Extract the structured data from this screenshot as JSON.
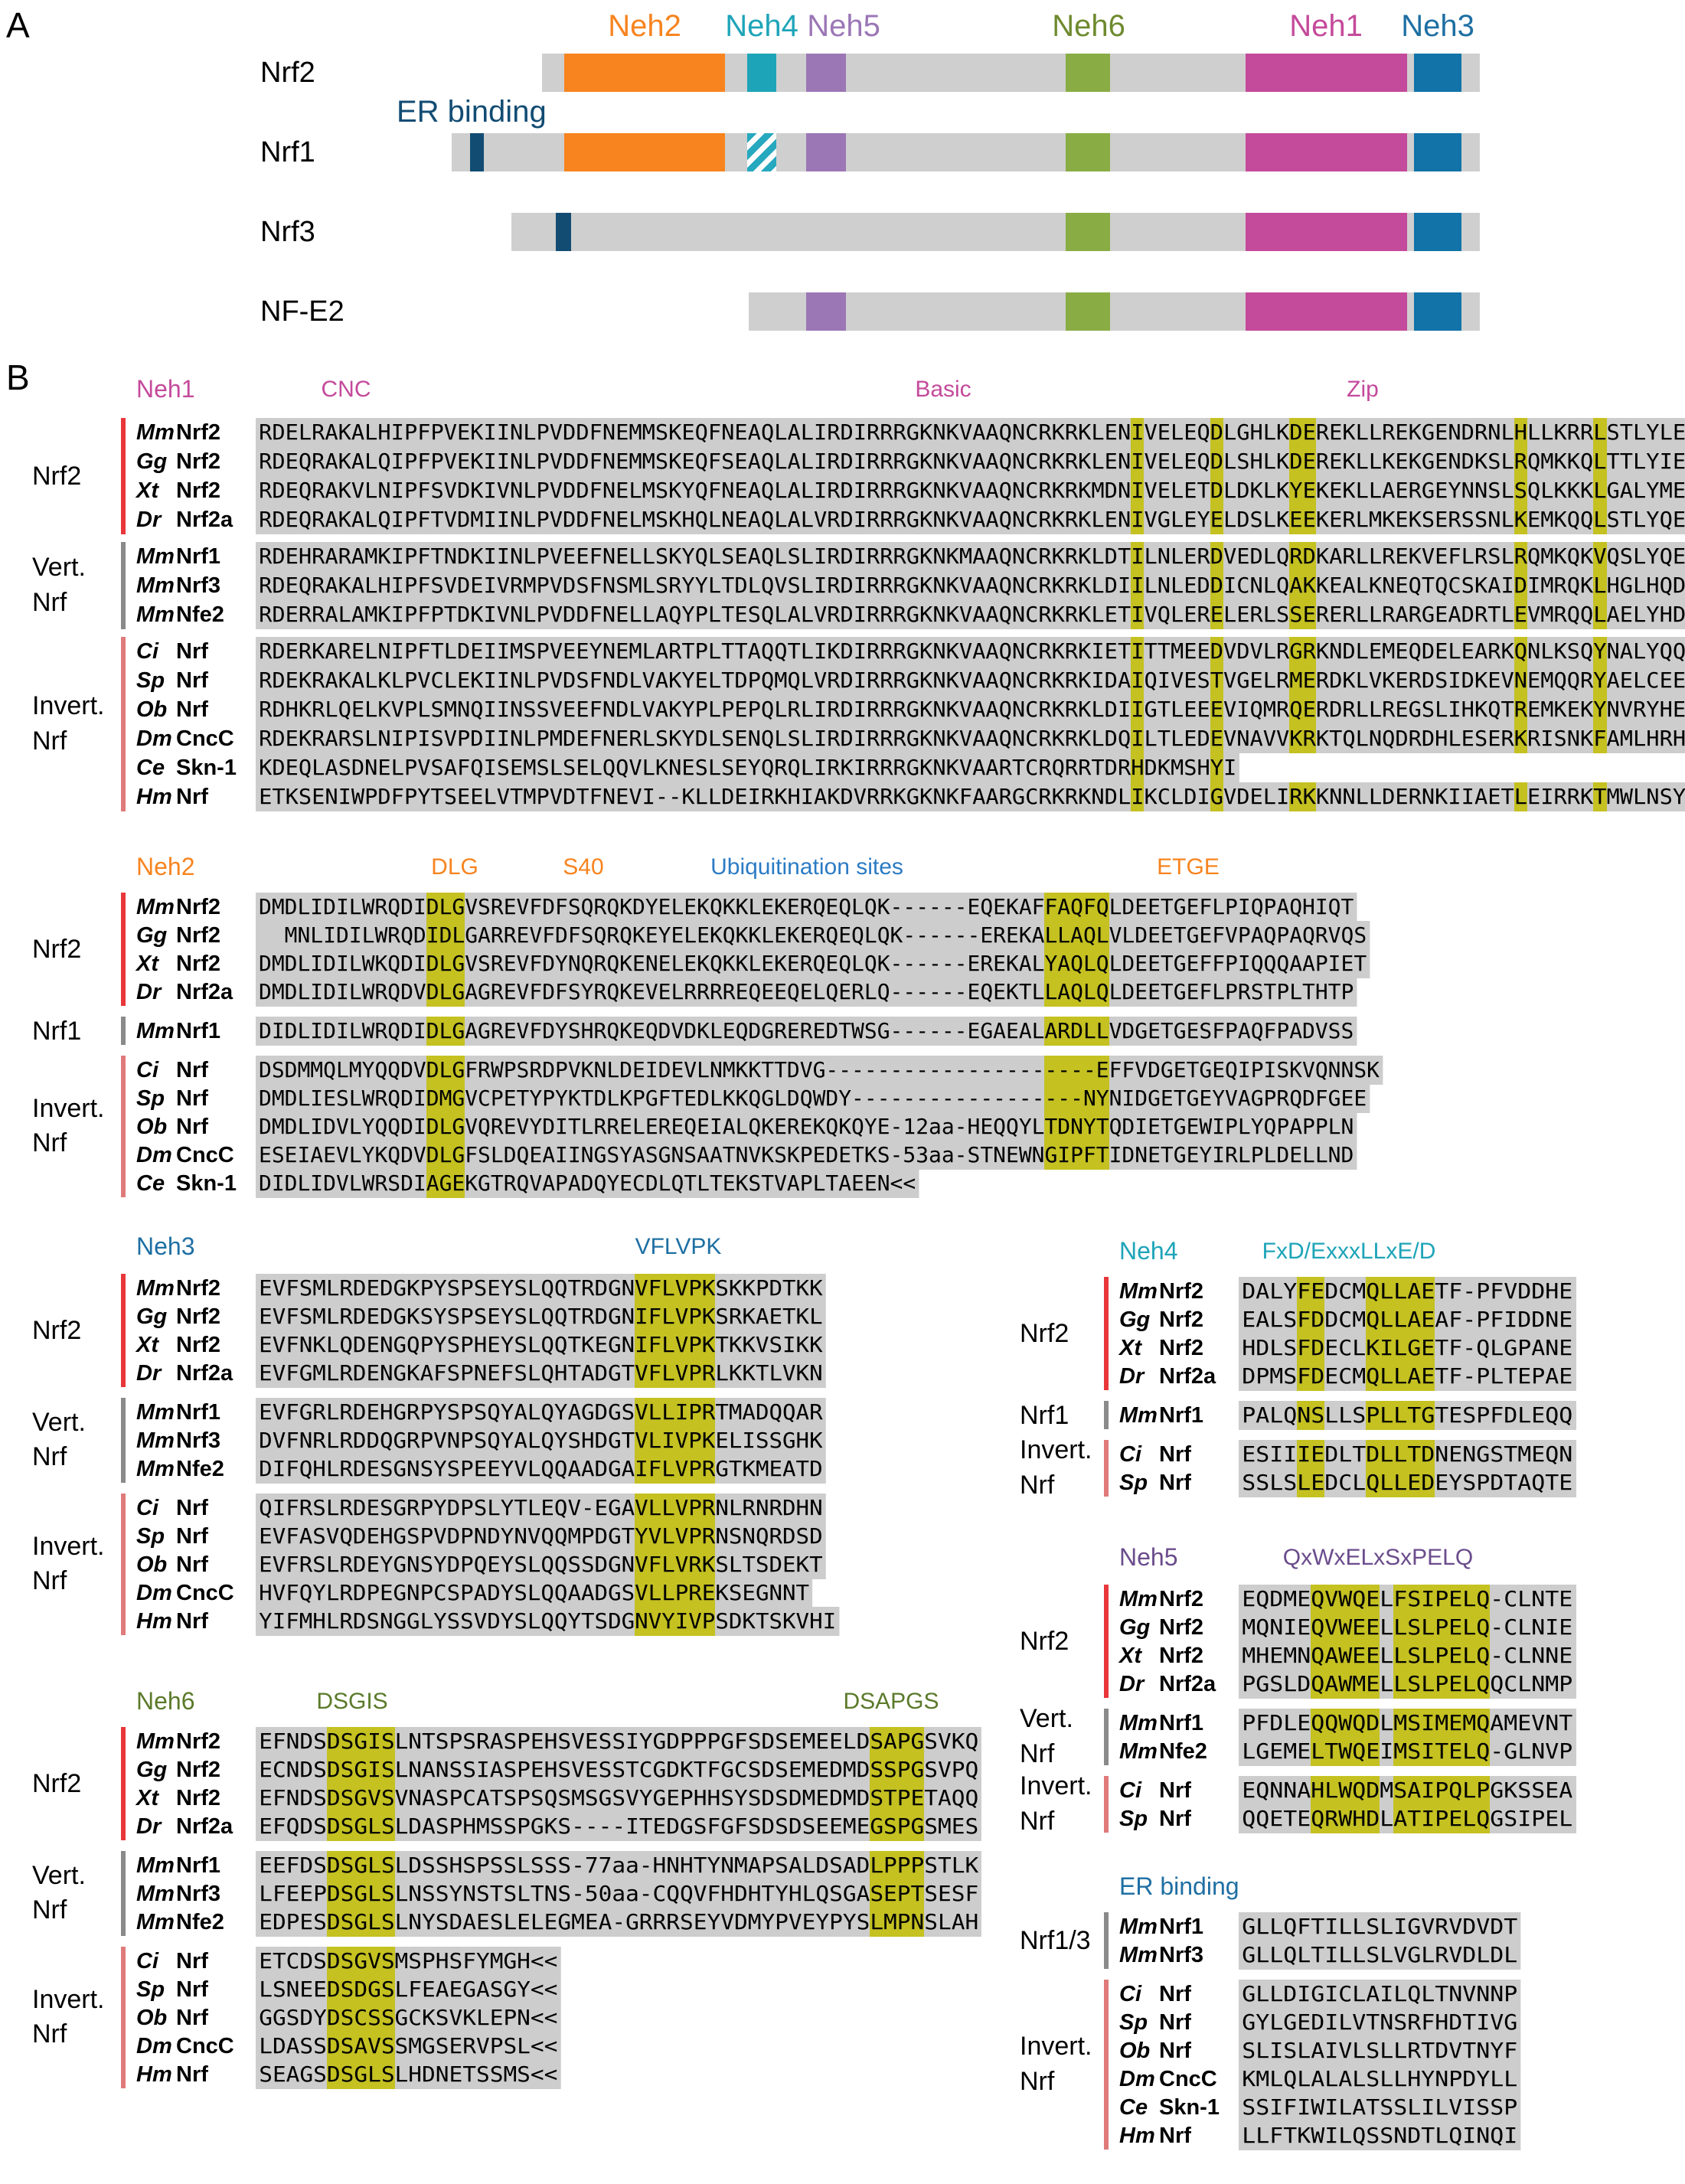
{
  "panel_a": {
    "letter": "A",
    "domain_labels": [
      {
        "text": "Neh2",
        "color": "#f7841f"
      },
      {
        "text": "Neh4",
        "color": "#1ea4b8"
      },
      {
        "text": "Neh5",
        "color": "#9b77b6"
      },
      {
        "text": "Neh6",
        "color": "#6e8a2e"
      },
      {
        "text": "Neh1",
        "color": "#c44a9b"
      },
      {
        "text": "Neh3",
        "color": "#1e6fa3"
      }
    ],
    "er_label": "ER binding",
    "proteins": [
      "Nrf2",
      "Nrf1",
      "Nrf3",
      "NF-E2"
    ],
    "colors": {
      "bar": "#cfcfcf",
      "neh2": "#f7841f",
      "neh4": "#1ea4b8",
      "neh5": "#9b77b6",
      "neh6": "#89ad44",
      "neh1": "#c44a9b",
      "neh3": "#1173a8",
      "er": "#124c73"
    }
  },
  "panel_b": {
    "letter": "B",
    "colors": {
      "nrf2_line": "#e8363a",
      "vert_line": "#8a8a8a",
      "invert_line": "#e07a7a",
      "highlight": "#f4f029",
      "neh1": "#c44a9b",
      "neh2": "#f7841f",
      "neh3": "#1e6fa3",
      "neh4": "#1ea4b8",
      "neh5": "#6b4c8c",
      "neh6": "#5b7a2a",
      "ubi": "#2b7bc4"
    },
    "neh1": {
      "title": "Neh1",
      "motifs": [
        "CNC",
        "Basic",
        "Zip"
      ],
      "groups": [
        {
          "label": "Nrf2",
          "rows": [
            {
              "sp": "Mm",
              "name": "Nrf2",
              "seq": "RDELRAKALHIPFPVEKIINLPVDDFNEMMSKEQFNEAQLALIRDIRRRGKNKVAAQNCRKRKLENIVELEQDLGHLKDEREKLLREKGENDRNLHLLKRRLSTLYLE"
            },
            {
              "sp": "Gg",
              "name": "Nrf2",
              "seq": "RDEQRAKALQIPFPVEKIINLPVDDFNEMMSKEQFSEAQLALIRDIRRRGKNKVAAQNCRKRKLENIVELEQDLSHLKDEREKLLKEKGENDKSLRQMKKQLTTLYIE"
            },
            {
              "sp": "Xt",
              "name": "Nrf2",
              "seq": "RDEQRAKVLNIPFSVDKIVNLPVDDFNELMSKYQFNEAQLALIRDIRRRGKNKVAAQNCRKRKMDNIVELETDLDKLKYEKEKLLAERGEYNNSLSQLKKKLGALYME"
            },
            {
              "sp": "Dr",
              "name": "Nrf2a",
              "seq": "RDEQRAKALQIPFTVDMIINLPVDDFNELMSKHQLNEAQLALVRDIRRRGKNKVAAQNCRKRKLENIVGLEYELDSLKEEKERLMKEKSERSSNLKEMKQQLSTLYQE"
            }
          ]
        },
        {
          "label": "Vert.\nNrf",
          "rows": [
            {
              "sp": "Mm",
              "name": "Nrf1",
              "seq": "RDEHRARAMKIPFTNDKIINLPVEEFNELLSKYQLSEAQLSLIRDIRRRGKNKMAAQNCRKRKLDTILNLERDVEDLQRDKARLLREKVEFLRSLRQMKQKVQSLYQE"
            },
            {
              "sp": "Mm",
              "name": "Nrf3",
              "seq": "RDEQRAKALHIPFSVDEIVRMPVDSFNSMLSRYYLTDLQVSLIRDIRRRGKNKVAAQNCRKRKLDIILNLEDDICNLQAKKEALKNEQTQCSKAIDIMRQKLHGLHQD"
            },
            {
              "sp": "Mm",
              "name": "Nfe2",
              "seq": "RDERRALAMKIPFPTDKIVNLPVDDFNELLAQYPLTESQLALVRDIRRRGKNKVAAQNCRKRKLETIVQLERELERLSSERERLLRARGEADRTLEVMRQQLAELYHD"
            }
          ]
        },
        {
          "label": "Invert.\nNrf",
          "rows": [
            {
              "sp": "Ci",
              "name": "Nrf",
              "seq": "RDERKARELNIPFTLDEIIMSPVEEYNEMLARTPLTTAQQTLIKDIRRRGKNKVAAQNCRKRKIETITTMEEDVDVLRGRKNDLEMEQDELEARKQNLKSQYNALYQQ"
            },
            {
              "sp": "Sp",
              "name": "Nrf",
              "seq": "RDEKRAKALKLPVCLEKIINLPVDSFNDLVAKYELTDPQMQLVRDIRRRGKNKVAAQNCRKRKIDAIQIVESTVGELRMERDKLVKERDSIDKEVNEMQQRYAELCEE"
            },
            {
              "sp": "Ob",
              "name": "Nrf",
              "seq": "RDHKRLQELKVPLSMNQIINSSVEEFNDLVAKYPLPEPQLRLIRDIRRRGKNKVAAQNCRKRKLDIIGTLEEEVIQMRQERDRLLREGSLIHKQTREMKEKYNVRYHE"
            },
            {
              "sp": "Dm",
              "name": "CncC",
              "seq": "RDEKRARSLNIPISVPDIINLPMDEFNERLSKYDLSENQLSLIRDIRRRGKNKVAAQNCRKRKLDQILTLEDEVNAVVKRKTQLNQDRDHLESERKRISNKFAMLHRH"
            },
            {
              "sp": "Ce",
              "name": "Skn-1",
              "seq": "KDEQLASDNELPVSAFQISEMSLSELQQVLKNESLSEYQRQLIRKIRRRGKNKVAARTCRQRRTDRHDKMSHYI"
            },
            {
              "sp": "Hm",
              "name": "Nrf",
              "seq": "ETKSENIWPDFPYTSEELVTMPVDTFNEVI--KLLDEIRKHIAKDVRRKGKNKFAARGCRKRKNDLIKCLDIGVDELIRKKNNLLDERNKIIAETLEIRRKTMWLNSY"
            }
          ]
        }
      ]
    },
    "neh2": {
      "title": "Neh2",
      "motifs": [
        "DLG",
        "S40",
        "Ubiquitination sites",
        "ETGE"
      ],
      "groups": [
        {
          "label": "Nrf2",
          "rows": [
            {
              "sp": "Mm",
              "name": "Nrf2",
              "seq": "DMDLIDILWRQDIDLGVSREVFDFSQRQKDYELEKQKKLEKERQEQLQK------EQEKAFFAQFQLDEETGEFLPIQPAQHIQT"
            },
            {
              "sp": "Gg",
              "name": "Nrf2",
              "seq": "  MNLIDILWRQDIDLGARREVFDFSQRQKEYELEKQKKLEKERQEQLQK------EREKALLAQLVLDEETGEFVPAQPAQRVQS"
            },
            {
              "sp": "Xt",
              "name": "Nrf2",
              "seq": "DMDLIDILWKQDIDLGVSREVFDYNQRQKENELEKQKKLEKERQEQLQK------EREKALYAQLQLDEETGEFFPIQQQAAPIET"
            },
            {
              "sp": "Dr",
              "name": "Nrf2a",
              "seq": "DMDLIDILWRQDVDLGAGREVFDFSYRQKEVELRRRREQEEQELQERLQ------EQEKTLLAQLQLDEETGEFLPRSTPLTHTP"
            }
          ]
        },
        {
          "label": "Nrf1",
          "rows": [
            {
              "sp": "Mm",
              "name": "Nrf1",
              "seq": "DIDLIDILWRQDIDLGAGREVFDYSHRQKEQDVDKLEQDGREREDTWSG------EGAEALARDLLVDGETGESFPAQFPADVSS"
            }
          ]
        },
        {
          "label": "Invert.\nNrf",
          "rows": [
            {
              "sp": "Ci",
              "name": "Nrf",
              "seq": "DSDMMQLMYQQDVDLGFRWPSRDPVKNLDEIDEVLNMKKTTDVG---------------------EFFVDGETGEQIPISKVQNNSK"
            },
            {
              "sp": "Sp",
              "name": "Nrf",
              "seq": "DMDLIESLWRQDIDMGVCPETYPYKTDLKPGFTEDLKKQGLDQWDY------------------NYNIDGETGEYVAGPRQDFGEE"
            },
            {
              "sp": "Ob",
              "name": "Nrf",
              "seq": "DMDLIDVLYQQDIDLGVQREVYDITLRRELEREQEIALQKEREKQKQYE-12aa-HEQQYLTDNYTQDIETGEWIPLYQPAPPLN"
            },
            {
              "sp": "Dm",
              "name": "CncC",
              "seq": "ESEIAEVLYKQDVDLGFSLDQEAIINGSYASGNSAATNVKSKPEDETKS-53aa-STNEWNGIPFTIDNETGEYIRLPLDELLND"
            },
            {
              "sp": "Ce",
              "name": "Skn-1",
              "seq": "DIDLIDVLWRSDIAGEKGTRQVAPADQYECDLQTLTEKSTVAPLTAEEN<<"
            }
          ]
        }
      ]
    },
    "neh3": {
      "title": "Neh3",
      "motifs": [
        "VFLVPK"
      ],
      "groups": [
        {
          "label": "Nrf2",
          "rows": [
            {
              "sp": "Mm",
              "name": "Nrf2",
              "seq": "EVFSMLRDEDGKPYSPSEYSLQQTRDGNVFLVPKSKKPDTKK"
            },
            {
              "sp": "Gg",
              "name": "Nrf2",
              "seq": "EVFSMLRDEDGKSYSPSEYSLQQTRDGNIFLVPKSRKAETKL"
            },
            {
              "sp": "Xt",
              "name": "Nrf2",
              "seq": "EVFNKLQDENGQPYSPHEYSLQQTKEGNIFLVPKTKKVSIKK"
            },
            {
              "sp": "Dr",
              "name": "Nrf2a",
              "seq": "EVFGMLRDENGKAFSPNEFSLQHTADGTVFLVPRLKKTLVKN"
            }
          ]
        },
        {
          "label": "Vert.\nNrf",
          "rows": [
            {
              "sp": "Mm",
              "name": "Nrf1",
              "seq": "EVFGRLRDEHGRPYSPSQYALQYAGDGSVLLIPRTMADQQAR"
            },
            {
              "sp": "Mm",
              "name": "Nrf3",
              "seq": "DVFNRLRDDQGRPVNPSQYALQYSHDGTVLIVPKELISSGHK"
            },
            {
              "sp": "Mm",
              "name": "Nfe2",
              "seq": "DIFQHLRDESGNSYSPEEYVLQQAADGAIFLVPRGTKMEATD"
            }
          ]
        },
        {
          "label": "Invert.\nNrf",
          "rows": [
            {
              "sp": "Ci",
              "name": "Nrf",
              "seq": "QIFRSLRDESGRPYDPSLYTLEQV-EGAVLLVPRNLRNRDHN"
            },
            {
              "sp": "Sp",
              "name": "Nrf",
              "seq": "EVFASVQDEHGSPVDPNDYNVQQMPDGTYVLVPRNSNQRDSD"
            },
            {
              "sp": "Ob",
              "name": "Nrf",
              "seq": "EVFRSLRDEYGNSYDPQEYSLQQSSDGNVFLVRKSLTSDEKT"
            },
            {
              "sp": "Dm",
              "name": "CncC",
              "seq": "HVFQYLRDPEGNPCSPADYSLQQAADGSVLLPREKSEGNNT"
            },
            {
              "sp": "Hm",
              "name": "Nrf",
              "seq": "YIFMHLRDSNGGLYSSVDYSLQQYTSDGNVYIVPSDKTSKVHI"
            }
          ]
        }
      ]
    },
    "neh4": {
      "title": "Neh4",
      "motifs": [
        "FxD/ExxxLLxE/D"
      ],
      "groups": [
        {
          "label": "Nrf2",
          "rows": [
            {
              "sp": "Mm",
              "name": "Nrf2",
              "seq": "DALYFEDCMQLLAETF-PFVDDHE"
            },
            {
              "sp": "Gg",
              "name": "Nrf2",
              "seq": "EALSFDDCMQLLAEAF-PFIDDNE"
            },
            {
              "sp": "Xt",
              "name": "Nrf2",
              "seq": "HDLSFDECLKILGETF-QLGPANE"
            },
            {
              "sp": "Dr",
              "name": "Nrf2a",
              "seq": "DPMSFDECMQLLAETF-PLTEPAE"
            }
          ]
        },
        {
          "label": "Nrf1",
          "rows": [
            {
              "sp": "Mm",
              "name": "Nrf1",
              "seq": "PALQNSLLSPLLTGTESPFDLEQQ"
            }
          ]
        },
        {
          "label": "Invert.\nNrf",
          "rows": [
            {
              "sp": "Ci",
              "name": "Nrf",
              "seq": "ESIIIEDLTDLLTDNENGSTMEQN"
            },
            {
              "sp": "Sp",
              "name": "Nrf",
              "seq": "SSLSLEDCLQLLEDEYSPDTAQTE"
            }
          ]
        }
      ]
    },
    "neh5": {
      "title": "Neh5",
      "motifs": [
        "QxWxELxSxPELQ"
      ],
      "groups": [
        {
          "label": "Nrf2",
          "rows": [
            {
              "sp": "Mm",
              "name": "Nrf2",
              "seq": "EQDMEQVWQELFSIPELQ-CLNTE"
            },
            {
              "sp": "Gg",
              "name": "Nrf2",
              "seq": "MQNIEQVWEELLSLPELQ-CLNIE"
            },
            {
              "sp": "Xt",
              "name": "Nrf2",
              "seq": "MHEMNQAWEELLSLPELQ-CLNNE"
            },
            {
              "sp": "Dr",
              "name": "Nrf2a",
              "seq": "PGSLDQAWMELLSLPELQQCLNMP"
            }
          ]
        },
        {
          "label": "Vert.\nNrf",
          "rows": [
            {
              "sp": "Mm",
              "name": "Nrf1",
              "seq": "PFDLEQQWQDLMSIMEMQAMEVNT"
            },
            {
              "sp": "Mm",
              "name": "Nfe2",
              "seq": "LGEMELTWQEIMSITELQ-GLNVP"
            }
          ]
        },
        {
          "label": "Invert.\nNrf",
          "rows": [
            {
              "sp": "Ci",
              "name": "Nrf",
              "seq": "EQNNAHLWQDMSAIPQLPGKSSEA"
            },
            {
              "sp": "Sp",
              "name": "Nrf",
              "seq": "QQETEQRWHDLATIPELQGSIPEL"
            }
          ]
        }
      ]
    },
    "neh6": {
      "title": "Neh6",
      "motifs": [
        "DSGIS",
        "DSAPGS"
      ],
      "groups": [
        {
          "label": "Nrf2",
          "rows": [
            {
              "sp": "Mm",
              "name": "Nrf2",
              "seq": "EFNDSDSGISLNTSPSRASPEHSVESSIYGDPPPGFSDSEMEELDSAPGSVKQ"
            },
            {
              "sp": "Gg",
              "name": "Nrf2",
              "seq": "ECNDSDSGISLNANSSIASPEHSVESSTCGDKTFGCSDSEMEDMDSSPGSVPQ"
            },
            {
              "sp": "Xt",
              "name": "Nrf2",
              "seq": "EFNDSDSGVSVNASPCATSPSQSMSGSVYGEPHHSYSDSDMEDMDSTPETAQQ"
            },
            {
              "sp": "Dr",
              "name": "Nrf2a",
              "seq": "EFQDSDSGLSLDASPHMSSPGKS----ITEDGSFGFSDSDSEEMEGSPGSMES"
            }
          ]
        },
        {
          "label": "Vert.\nNrf",
          "rows": [
            {
              "sp": "Mm",
              "name": "Nrf1",
              "seq": "EEFDSDSGLSLDSSHSPSSLSSS-77aa-HNHTYNMAPSALDSADLPPPSTLK"
            },
            {
              "sp": "Mm",
              "name": "Nrf3",
              "seq": "LFEEPDSGLSLNSSYNSTSLTNS-50aa-CQQVFHDHTYHLQSGASEPTSESF"
            },
            {
              "sp": "Mm",
              "name": "Nfe2",
              "seq": "EDPESDSGLSLNYSDAESLELEGMEA-GRRRSEYVDMYPVEYPYSLMPNSLAH"
            }
          ]
        },
        {
          "label": "Invert.\nNrf",
          "rows": [
            {
              "sp": "Ci",
              "name": "Nrf",
              "seq": "ETCDSDSGVSMSPHSFYMGH<<"
            },
            {
              "sp": "Sp",
              "name": "Nrf",
              "seq": "LSNEEDSDGSLFEAEGASGY<<"
            },
            {
              "sp": "Ob",
              "name": "Nrf",
              "seq": "GGSDYDSCSSGCKSVKLEPN<<"
            },
            {
              "sp": "Dm",
              "name": "CncC",
              "seq": "LDASSDSAVSSMGSERVPSL<<"
            },
            {
              "sp": "Hm",
              "name": "Nrf",
              "seq": "SEAGSDSGLSLHDNETSSMS<<"
            }
          ]
        }
      ]
    },
    "er": {
      "title": "ER binding",
      "groups": [
        {
          "label": "Nrf1/3",
          "rows": [
            {
              "sp": "Mm",
              "name": "Nrf1",
              "seq": "GLLQFTILLSLIGVRVDVDT"
            },
            {
              "sp": "Mm",
              "name": "Nrf3",
              "seq": "GLLQLTILLSLVGLRVDLDL"
            }
          ]
        },
        {
          "label": "Invert.\nNrf",
          "rows": [
            {
              "sp": "Ci",
              "name": "Nrf",
              "seq": "GLLDIGICLAILQLTNVNNP"
            },
            {
              "sp": "Sp",
              "name": "Nrf",
              "seq": "GYLGEDILVTNSRFHDTIVG"
            },
            {
              "sp": "Ob",
              "name": "Nrf",
              "seq": "SLISLAIVLSLLRTDVTNYF"
            },
            {
              "sp": "Dm",
              "name": "CncC",
              "seq": "KMLQLALALSLLHYNPDYLL"
            },
            {
              "sp": "Ce",
              "name": "Skn-1",
              "seq": "SSIFIWILATSSLILVISSP"
            },
            {
              "sp": "Hm",
              "name": "Nrf",
              "seq": "LLFTKWILQSSNDTLQINQI"
            }
          ]
        }
      ]
    }
  }
}
